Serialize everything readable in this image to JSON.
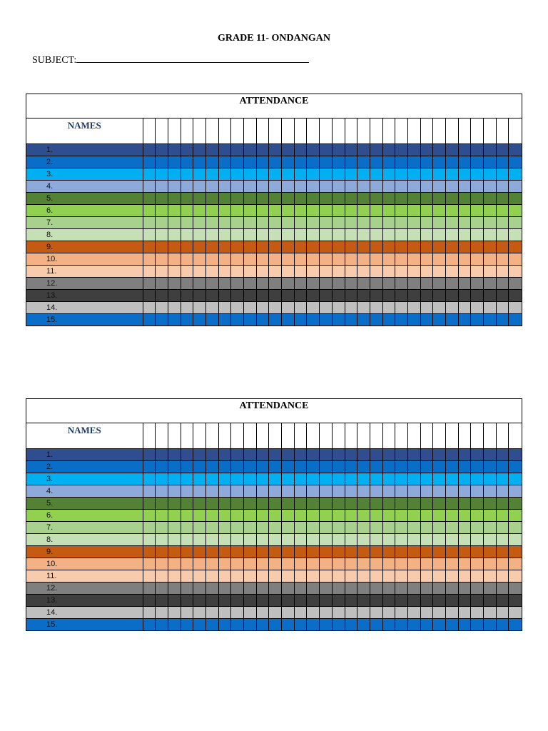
{
  "title": "GRADE 11- ONDANGAN",
  "subject_label": "SUBJECT:",
  "tables": [
    {
      "header": "ATTENDANCE",
      "names_label": "NAMES"
    },
    {
      "header": "ATTENDANCE",
      "names_label": "NAMES"
    }
  ],
  "row_labels": [
    "1.",
    "2.",
    "3.",
    "4.",
    "5.",
    "6.",
    "7.",
    "8.",
    "9.",
    "10.",
    "11.",
    "12.",
    "13.",
    "14.",
    "15."
  ],
  "row_colors": [
    "#2e4e8f",
    "#0a6ec8",
    "#00b0f0",
    "#8eaadb",
    "#548235",
    "#92d050",
    "#a9d18e",
    "#c5e0b4",
    "#c55a11",
    "#f4b183",
    "#f8cbad",
    "#7f7f7f",
    "#3f3f3f",
    "#bfbfbf",
    "#0a6ec8"
  ],
  "date_columns": 30
}
